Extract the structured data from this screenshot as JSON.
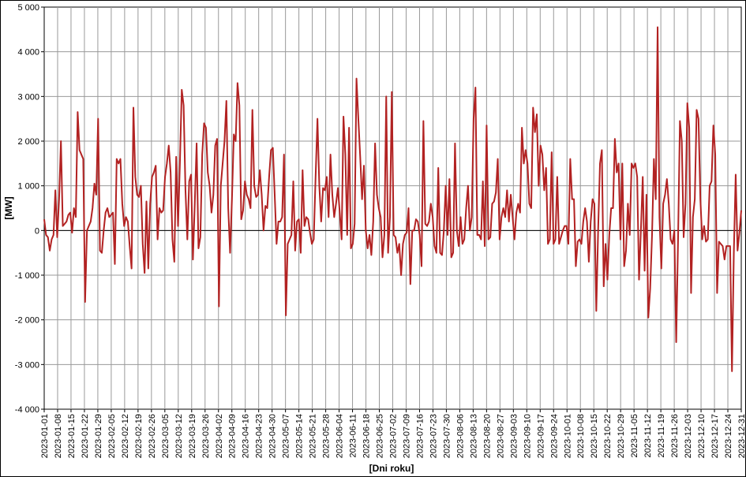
{
  "chart_data": {
    "type": "line",
    "title": "",
    "xlabel": "[Dni roku]",
    "ylabel": "[MW]",
    "ylim": [
      -4000,
      5000
    ],
    "y_ticks": [
      -4000,
      -3000,
      -2000,
      -1000,
      0,
      1000,
      2000,
      3000,
      4000,
      5000
    ],
    "y_tick_labels": [
      "-4 000",
      "-3 000",
      "-2 000",
      "-1 000",
      "0",
      "1 000",
      "2 000",
      "3 000",
      "4 000",
      "5 000"
    ],
    "x_start": "2023-01-01",
    "x_end": "2023-12-31",
    "x_tick_labels": [
      "2023-01-01",
      "2023-01-08",
      "2023-01-15",
      "2023-01-22",
      "2023-01-29",
      "2023-02-05",
      "2023-02-12",
      "2023-02-19",
      "2023-02-26",
      "2023-03-05",
      "2023-03-12",
      "2023-03-19",
      "2023-03-26",
      "2023-04-02",
      "2023-04-09",
      "2023-04-16",
      "2023-04-23",
      "2023-04-30",
      "2023-05-07",
      "2023-05-14",
      "2023-05-21",
      "2023-05-28",
      "2023-06-04",
      "2023-06-11",
      "2023-06-18",
      "2023-06-25",
      "2023-07-02",
      "2023-07-09",
      "2023-07-16",
      "2023-07-23",
      "2023-07-30",
      "2023-08-06",
      "2023-08-13",
      "2023-08-20",
      "2023-08-27",
      "2023-09-03",
      "2023-09-10",
      "2023-09-17",
      "2023-09-24",
      "2023-10-01",
      "2023-10-08",
      "2023-10-15",
      "2023-10-22",
      "2023-10-29",
      "2023-11-05",
      "2023-11-12",
      "2023-11-19",
      "2023-11-26",
      "2023-12-03",
      "2023-12-10",
      "2023-12-17",
      "2023-12-24",
      "2023-12-31"
    ],
    "grid": true,
    "series": [
      {
        "color": "#b22222",
        "x_dates_start": "2023-01-01",
        "values": [
          250,
          -100,
          -150,
          -450,
          -200,
          -100,
          900,
          -150,
          700,
          2000,
          100,
          150,
          200,
          350,
          400,
          -50,
          500,
          300,
          2650,
          1800,
          1700,
          1600,
          -1600,
          0,
          100,
          200,
          500,
          1050,
          800,
          2500,
          -450,
          -500,
          0,
          400,
          500,
          300,
          350,
          400,
          -750,
          1600,
          1500,
          1600,
          600,
          100,
          300,
          200,
          -350,
          -850,
          2750,
          1200,
          800,
          750,
          1000,
          -300,
          -950,
          650,
          -850,
          600,
          1200,
          1300,
          1450,
          -200,
          500,
          400,
          450,
          1200,
          1500,
          1900,
          1300,
          -200,
          -700,
          1650,
          100,
          1500,
          3150,
          2800,
          900,
          -200,
          1100,
          1250,
          -650,
          600,
          1950,
          -400,
          -150,
          1700,
          2400,
          2300,
          1300,
          1000,
          400,
          800,
          1900,
          2050,
          -1700,
          1000,
          1500,
          2000,
          2900,
          500,
          -500,
          700,
          2150,
          2000,
          3300,
          2800,
          250,
          450,
          1100,
          800,
          700,
          500,
          2700,
          1000,
          750,
          800,
          1350,
          800,
          0,
          550,
          500,
          1200,
          1800,
          1850,
          800,
          -300,
          200,
          200,
          300,
          1700,
          -1900,
          -300,
          -200,
          -100,
          1100,
          -450,
          200,
          250,
          -500,
          1350,
          100,
          300,
          250,
          -50,
          -300,
          -200,
          1200,
          2500,
          1000,
          200,
          950,
          900,
          1200,
          300,
          1700,
          800,
          300,
          600,
          950,
          400,
          -200,
          2550,
          1700,
          -100,
          2300,
          -400,
          -300,
          150,
          3400,
          2500,
          1650,
          700,
          1450,
          0,
          -400,
          -100,
          -550,
          200,
          1950,
          800,
          500,
          300,
          -600,
          -100,
          3000,
          -500,
          300,
          3100,
          -100,
          -150,
          -500,
          -300,
          -1000,
          -300,
          -100,
          -50,
          500,
          -1200,
          0,
          0,
          250,
          200,
          -100,
          -800,
          2450,
          150,
          100,
          200,
          600,
          300,
          -350,
          -500,
          1400,
          -500,
          -550,
          0,
          1000,
          -100,
          1150,
          -600,
          -500,
          1950,
          0,
          -350,
          300,
          -300,
          -200,
          500,
          1000,
          0,
          300,
          2500,
          3200,
          -100,
          -100,
          -200,
          1100,
          -350,
          2350,
          -200,
          -150,
          600,
          650,
          850,
          1600,
          -200,
          300,
          500,
          300,
          900,
          200,
          800,
          300,
          -200,
          400,
          600,
          400,
          2300,
          1500,
          1800,
          1500,
          600,
          500,
          2750,
          2200,
          2600,
          1000,
          1900,
          1700,
          900,
          1400,
          -300,
          -200,
          1750,
          -300,
          -200,
          1200,
          -300,
          -150,
          0,
          100,
          100,
          -300,
          1600,
          700,
          700,
          -800,
          -250,
          -200,
          -300,
          200,
          500,
          200,
          -700,
          200,
          700,
          600,
          -1800,
          0,
          1500,
          1800,
          -1250,
          -300,
          -1100,
          -100,
          500,
          500,
          2050,
          1300,
          1500,
          -200,
          1500,
          -800,
          -450,
          600,
          -100,
          1500,
          1400,
          1500,
          1200,
          -1100,
          0,
          1200,
          -900,
          800,
          -1950,
          -1300,
          -100,
          1600,
          700,
          4550,
          300,
          -850,
          600,
          800,
          1150,
          600,
          -200,
          -300,
          0,
          -2500,
          -200,
          2450,
          2000,
          -150,
          600,
          2850,
          2300,
          -1400,
          300,
          700,
          2700,
          2500,
          700,
          -200,
          100,
          -250,
          -200,
          1000,
          1100,
          2350,
          1700,
          -1400,
          -250,
          -300,
          -350,
          -650,
          -350,
          -350,
          -350,
          -3150,
          -500,
          1250,
          -450,
          -50,
          450
        ]
      }
    ]
  }
}
